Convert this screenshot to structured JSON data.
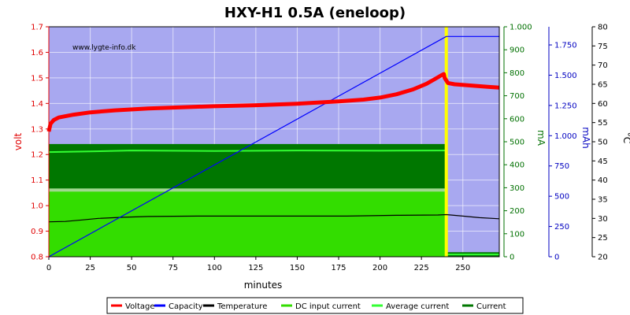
{
  "chart_data": {
    "type": "line",
    "title": "HXY-H1 0.5A (eneloop)",
    "watermark": "www.lygte-info.dk",
    "xlabel": "minutes",
    "xlim": [
      0,
      272
    ],
    "xticks": [
      0,
      25,
      50,
      75,
      100,
      125,
      150,
      175,
      200,
      225,
      250
    ],
    "axes": {
      "volt": {
        "label": "volt",
        "range": [
          0.8,
          1.7
        ],
        "ticks": [
          "0.8",
          "0.9",
          "1.0",
          "1.1",
          "1.2",
          "1.3",
          "1.4",
          "1.5",
          "1.6",
          "1.7"
        ],
        "color": "#e00000"
      },
      "mA": {
        "label": "mA",
        "range": [
          0,
          1000
        ],
        "ticks": [
          "0",
          "100",
          "200",
          "300",
          "400",
          "500",
          "600",
          "700",
          "800",
          "900",
          "1.000"
        ],
        "color": "#007000"
      },
      "mAh": {
        "label": "mAh",
        "range": [
          0,
          1900
        ],
        "ticks": [
          "0",
          "250",
          "500",
          "750",
          "1.000",
          "1.250",
          "1.500",
          "1.750"
        ],
        "color": "#0000c0"
      },
      "temp": {
        "label": "°C",
        "range": [
          20,
          80
        ],
        "ticks": [
          "20",
          "25",
          "30",
          "35",
          "40",
          "45",
          "50",
          "55",
          "60",
          "65",
          "70",
          "75",
          "80"
        ],
        "color": "#000000"
      }
    },
    "background_color": "#a8a8f0",
    "marker": {
      "x": 240,
      "color": "#ffff00"
    },
    "series": [
      {
        "name": "Voltage",
        "axis": "volt",
        "color": "#ff0000",
        "x": [
          0,
          1,
          3,
          6,
          10,
          15,
          25,
          40,
          60,
          80,
          100,
          125,
          150,
          175,
          190,
          200,
          210,
          220,
          228,
          233,
          237,
          238.5,
          239,
          241,
          245,
          255,
          265,
          272
        ],
        "y": [
          1.29,
          1.32,
          1.335,
          1.345,
          1.35,
          1.356,
          1.365,
          1.373,
          1.38,
          1.385,
          1.389,
          1.393,
          1.399,
          1.408,
          1.415,
          1.423,
          1.436,
          1.455,
          1.477,
          1.495,
          1.51,
          1.515,
          1.5,
          1.48,
          1.475,
          1.47,
          1.465,
          1.462
        ]
      },
      {
        "name": "Capacity",
        "axis": "mAh",
        "color": "#0000ff",
        "x": [
          0,
          240,
          272
        ],
        "y": [
          0,
          1820,
          1820
        ]
      },
      {
        "name": "Temperature",
        "axis": "temp",
        "color": "#000000",
        "x": [
          0,
          10,
          20,
          30,
          45,
          60,
          90,
          120,
          150,
          180,
          210,
          235,
          240,
          250,
          260,
          272
        ],
        "y": [
          29.1,
          29.2,
          29.6,
          30.0,
          30.3,
          30.5,
          30.6,
          30.6,
          30.6,
          30.6,
          30.8,
          30.9,
          31.0,
          30.6,
          30.2,
          29.9
        ]
      },
      {
        "name": "DC input current",
        "axis": "mA",
        "color": "#33dd00",
        "x": [
          0,
          240,
          240,
          272
        ],
        "y": [
          290,
          290,
          0,
          0
        ]
      },
      {
        "name": "Average current",
        "axis": "mA",
        "color": "#33ff33",
        "x": [
          0,
          25,
          50,
          100,
          150,
          200,
          238,
          240,
          240,
          272
        ],
        "y": [
          455,
          458,
          462,
          460,
          462,
          461,
          462,
          462,
          10,
          10
        ]
      },
      {
        "name": "Current",
        "axis": "mA",
        "color": "#007700",
        "x": [
          0,
          240,
          240,
          272
        ],
        "y": [
          490,
          490,
          20,
          20
        ]
      }
    ],
    "legend_position": "bottom"
  }
}
